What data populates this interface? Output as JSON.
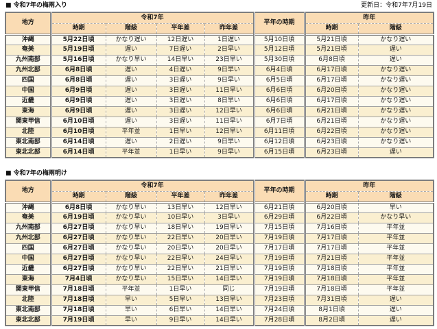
{
  "page": {
    "update_label": "更新日：令和7年7月19日"
  },
  "colors": {
    "header_bg": "#fadcb4",
    "row_light": "#fdfaef",
    "row_dark": "#faefd0",
    "border_strong": "#7d7d7d",
    "border_row": "#9f9f9f",
    "border_dash": "#aaaaaa"
  },
  "tables": [
    {
      "title": "■ 令和7年の梅雨入り",
      "headers": {
        "region": "地方",
        "this_year_group": "令和7年",
        "period": "時期",
        "grade": "階級",
        "normal_diff": "平年差",
        "last_year_diff": "昨年差",
        "normal_period": "平年の時期",
        "last_year_group": "昨年",
        "ly_period": "時期",
        "ly_grade": "階級"
      },
      "rows": [
        [
          "沖縄",
          "5月22日頃",
          "かなり遅い",
          "12日遅い",
          "1日遅い",
          "5月10日頃",
          "5月21日頃",
          "かなり遅い"
        ],
        [
          "奄美",
          "5月19日頃",
          "遅い",
          "7日遅い",
          "2日早い",
          "5月12日頃",
          "5月21日頃",
          "遅い"
        ],
        [
          "九州南部",
          "5月16日頃",
          "かなり早い",
          "14日早い",
          "23日早い",
          "5月30日頃",
          "6月8日頃",
          "遅い"
        ],
        [
          "九州北部",
          "6月8日頃",
          "遅い",
          "4日遅い",
          "9日早い",
          "6月4日頃",
          "6月17日頃",
          "かなり遅い"
        ],
        [
          "四国",
          "6月8日頃",
          "遅い",
          "3日遅い",
          "9日早い",
          "6月5日頃",
          "6月17日頃",
          "かなり遅い"
        ],
        [
          "中国",
          "6月9日頃",
          "遅い",
          "3日遅い",
          "11日早い",
          "6月6日頃",
          "6月20日頃",
          "かなり遅い"
        ],
        [
          "近畿",
          "6月9日頃",
          "遅い",
          "3日遅い",
          "8日早い",
          "6月6日頃",
          "6月17日頃",
          "かなり遅い"
        ],
        [
          "東海",
          "6月9日頃",
          "遅い",
          "3日遅い",
          "12日早い",
          "6月6日頃",
          "6月21日頃",
          "かなり遅い"
        ],
        [
          "関東甲信",
          "6月10日頃",
          "遅い",
          "3日遅い",
          "11日早い",
          "6月7日頃",
          "6月21日頃",
          "かなり遅い"
        ],
        [
          "北陸",
          "6月10日頃",
          "平年並",
          "1日早い",
          "12日早い",
          "6月11日頃",
          "6月22日頃",
          "かなり遅い"
        ],
        [
          "東北南部",
          "6月14日頃",
          "遅い",
          "2日遅い",
          "9日早い",
          "6月12日頃",
          "6月23日頃",
          "かなり遅い"
        ],
        [
          "東北北部",
          "6月14日頃",
          "平年並",
          "1日早い",
          "9日早い",
          "6月15日頃",
          "6月23日頃",
          "遅い"
        ]
      ]
    },
    {
      "title": "■ 令和7年の梅雨明け",
      "headers": {
        "region": "地方",
        "this_year_group": "令和7年",
        "period": "時期",
        "grade": "階級",
        "normal_diff": "平年差",
        "last_year_diff": "昨年差",
        "normal_period": "平年の時期",
        "last_year_group": "昨年",
        "ly_period": "時期",
        "ly_grade": "階級"
      },
      "rows": [
        [
          "沖縄",
          "6月8日頃",
          "かなり早い",
          "13日早い",
          "12日早い",
          "6月21日頃",
          "6月20日頃",
          "早い"
        ],
        [
          "奄美",
          "6月19日頃",
          "かなり早い",
          "10日早い",
          "3日早い",
          "6月29日頃",
          "6月22日頃",
          "かなり早い"
        ],
        [
          "九州南部",
          "6月27日頃",
          "かなり早い",
          "18日早い",
          "19日早い",
          "7月15日頃",
          "7月16日頃",
          "平年並"
        ],
        [
          "九州北部",
          "6月27日頃",
          "かなり早い",
          "22日早い",
          "20日早い",
          "7月19日頃",
          "7月17日頃",
          "平年並"
        ],
        [
          "四国",
          "6月27日頃",
          "かなり早い",
          "20日早い",
          "20日早い",
          "7月17日頃",
          "7月17日頃",
          "平年並"
        ],
        [
          "中国",
          "6月27日頃",
          "かなり早い",
          "22日早い",
          "24日早い",
          "7月19日頃",
          "7月21日頃",
          "平年並"
        ],
        [
          "近畿",
          "6月27日頃",
          "かなり早い",
          "22日早い",
          "21日早い",
          "7月19日頃",
          "7月18日頃",
          "平年並"
        ],
        [
          "東海",
          "7月4日頃",
          "かなり早い",
          "15日早い",
          "14日早い",
          "7月19日頃",
          "7月18日頃",
          "平年並"
        ],
        [
          "関東甲信",
          "7月18日頃",
          "平年並",
          "1日早い",
          "同じ",
          "7月19日頃",
          "7月18日頃",
          "平年並"
        ],
        [
          "北陸",
          "7月18日頃",
          "早い",
          "5日早い",
          "13日早い",
          "7月23日頃",
          "7月31日頃",
          "遅い"
        ],
        [
          "東北南部",
          "7月18日頃",
          "早い",
          "6日早い",
          "14日早い",
          "7月24日頃",
          "8月1日頃",
          "遅い"
        ],
        [
          "東北北部",
          "7月19日頃",
          "早い",
          "9日早い",
          "14日早い",
          "7月28日頃",
          "8月2日頃",
          "遅い"
        ]
      ]
    }
  ]
}
